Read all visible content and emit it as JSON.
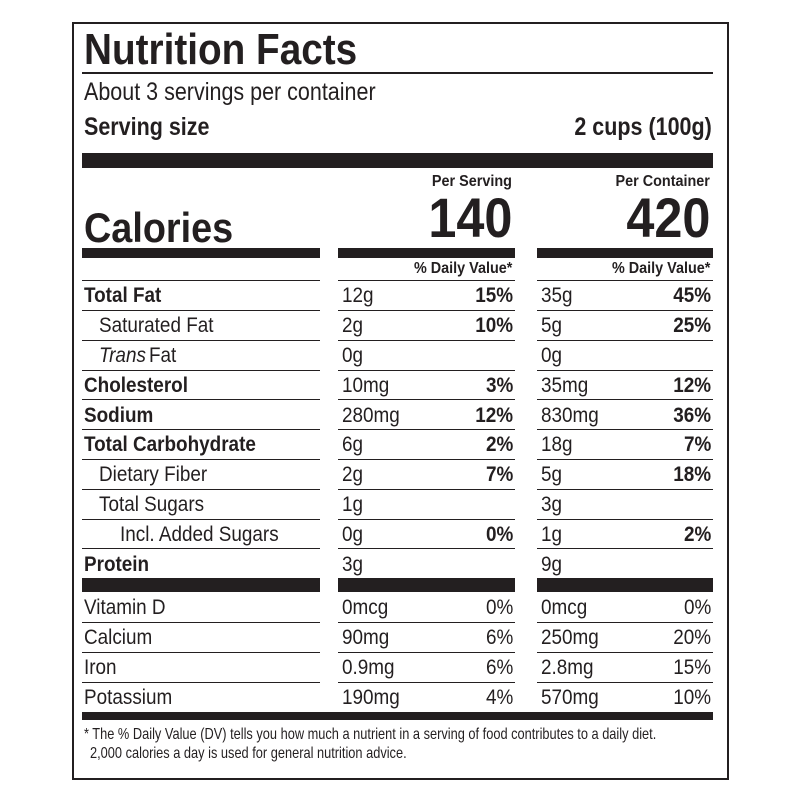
{
  "header": {
    "title": "Nutrition Facts",
    "servings": "About 3 servings per container",
    "serving_size_label": "Serving size",
    "serving_size_value": "2 cups (100g)"
  },
  "columns": [
    "Per Serving",
    "Per Container"
  ],
  "calories": {
    "label": "Calories",
    "values": [
      140,
      420
    ]
  },
  "dv_header": "% Daily Value*",
  "nutrients": [
    {
      "name": "Total Fat",
      "bold": true,
      "indent": 0,
      "serving": {
        "amount": "12g",
        "dv": "15%"
      },
      "container": {
        "amount": "35g",
        "dv": "45%"
      }
    },
    {
      "name": "Saturated Fat",
      "bold": false,
      "indent": 1,
      "serving": {
        "amount": "2g",
        "dv": "10%"
      },
      "container": {
        "amount": "5g",
        "dv": "25%"
      }
    },
    {
      "name_italic": "Trans",
      "name": "Fat",
      "bold": false,
      "indent": 1,
      "serving": {
        "amount": "0g"
      },
      "container": {
        "amount": "0g"
      }
    },
    {
      "name": "Cholesterol",
      "bold": true,
      "indent": 0,
      "serving": {
        "amount": "10mg",
        "dv": "3%"
      },
      "container": {
        "amount": "35mg",
        "dv": "12%"
      }
    },
    {
      "name": "Sodium",
      "bold": true,
      "indent": 0,
      "serving": {
        "amount": "280mg",
        "dv": "12%"
      },
      "container": {
        "amount": "830mg",
        "dv": "36%"
      }
    },
    {
      "name": "Total Carbohydrate",
      "bold": true,
      "indent": 0,
      "serving": {
        "amount": "6g",
        "dv": "2%"
      },
      "container": {
        "amount": "18g",
        "dv": "7%"
      }
    },
    {
      "name": "Dietary Fiber",
      "bold": false,
      "indent": 1,
      "serving": {
        "amount": "2g",
        "dv": "7%"
      },
      "container": {
        "amount": "5g",
        "dv": "18%"
      }
    },
    {
      "name": "Total Sugars",
      "bold": false,
      "indent": 1,
      "serving": {
        "amount": "1g"
      },
      "container": {
        "amount": "3g"
      }
    },
    {
      "name": "Incl. Added Sugars",
      "bold": false,
      "indent": 2,
      "serving": {
        "amount": "0g",
        "dv": "0%"
      },
      "container": {
        "amount": "1g",
        "dv": "2%"
      }
    },
    {
      "name": "Protein",
      "bold": true,
      "indent": 0,
      "serving": {
        "amount": "3g"
      },
      "container": {
        "amount": "9g"
      }
    }
  ],
  "vitamins": [
    {
      "name": "Vitamin D",
      "serving": {
        "amount": "0mcg",
        "dv": "0%"
      },
      "container": {
        "amount": "0mcg",
        "dv": "0%"
      }
    },
    {
      "name": "Calcium",
      "serving": {
        "amount": "90mg",
        "dv": "6%"
      },
      "container": {
        "amount": "250mg",
        "dv": "20%"
      }
    },
    {
      "name": "Iron",
      "serving": {
        "amount": "0.9mg",
        "dv": "6%"
      },
      "container": {
        "amount": "2.8mg",
        "dv": "15%"
      }
    },
    {
      "name": "Potassium",
      "serving": {
        "amount": "190mg",
        "dv": "4%"
      },
      "container": {
        "amount": "570mg",
        "dv": "10%"
      }
    }
  ],
  "footnote": [
    "* The % Daily Value (DV) tells you how much a nutrient in a serving of food contributes to a daily diet.",
    "2,000 calories a day is used for general nutrition advice."
  ]
}
